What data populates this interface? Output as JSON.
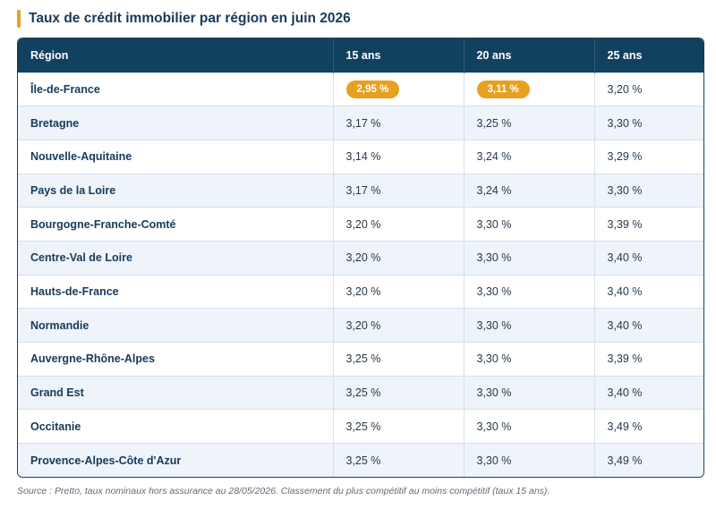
{
  "title": "Taux de crédit immobilier par région en juin 2026",
  "table": {
    "headers": [
      "Région",
      "15 ans",
      "20 ans",
      "25 ans"
    ],
    "rows": [
      {
        "region": "Île-de-France",
        "y15": "2,95 %",
        "y20": "3,11 %",
        "y25": "3,20 %",
        "highlight": [
          true,
          true,
          false
        ]
      },
      {
        "region": "Bretagne",
        "y15": "3,17 %",
        "y20": "3,25 %",
        "y25": "3,30 %",
        "highlight": [
          false,
          false,
          false
        ]
      },
      {
        "region": "Nouvelle-Aquitaine",
        "y15": "3,14 %",
        "y20": "3,24 %",
        "y25": "3,29 %",
        "highlight": [
          false,
          false,
          false
        ]
      },
      {
        "region": "Pays de la Loire",
        "y15": "3,17 %",
        "y20": "3,24 %",
        "y25": "3,30 %",
        "highlight": [
          false,
          false,
          false
        ]
      },
      {
        "region": "Bourgogne-Franche-Comté",
        "y15": "3,20 %",
        "y20": "3,30 %",
        "y25": "3,39 %",
        "highlight": [
          false,
          false,
          false
        ]
      },
      {
        "region": "Centre-Val de Loire",
        "y15": "3,20 %",
        "y20": "3,30 %",
        "y25": "3,40 %",
        "highlight": [
          false,
          false,
          false
        ]
      },
      {
        "region": "Hauts-de-France",
        "y15": "3,20 %",
        "y20": "3,30 %",
        "y25": "3,40 %",
        "highlight": [
          false,
          false,
          false
        ]
      },
      {
        "region": "Normandie",
        "y15": "3,20 %",
        "y20": "3,30 %",
        "y25": "3,40 %",
        "highlight": [
          false,
          false,
          false
        ]
      },
      {
        "region": "Auvergne-Rhône-Alpes",
        "y15": "3,25 %",
        "y20": "3,30 %",
        "y25": "3,39 %",
        "highlight": [
          false,
          false,
          false
        ]
      },
      {
        "region": "Grand Est",
        "y15": "3,25 %",
        "y20": "3,30 %",
        "y25": "3,40 %",
        "highlight": [
          false,
          false,
          false
        ]
      },
      {
        "region": "Occitanie",
        "y15": "3,25 %",
        "y20": "3,30 %",
        "y25": "3,49 %",
        "highlight": [
          false,
          false,
          false
        ]
      },
      {
        "region": "Provence-Alpes-Côte d'Azur",
        "y15": "3,25 %",
        "y20": "3,30 %",
        "y25": "3,49 %",
        "highlight": [
          false,
          false,
          false
        ]
      }
    ]
  },
  "source": "Source : Pretto, taux nominaux hors assurance au 28/05/2026. Classement du plus compétitif au moins compétitif (taux 15 ans).",
  "colors": {
    "accent": "#e8a020",
    "header_bg": "#12405f",
    "row_alt": "#eef4fa",
    "text_dark": "#173a5a"
  }
}
